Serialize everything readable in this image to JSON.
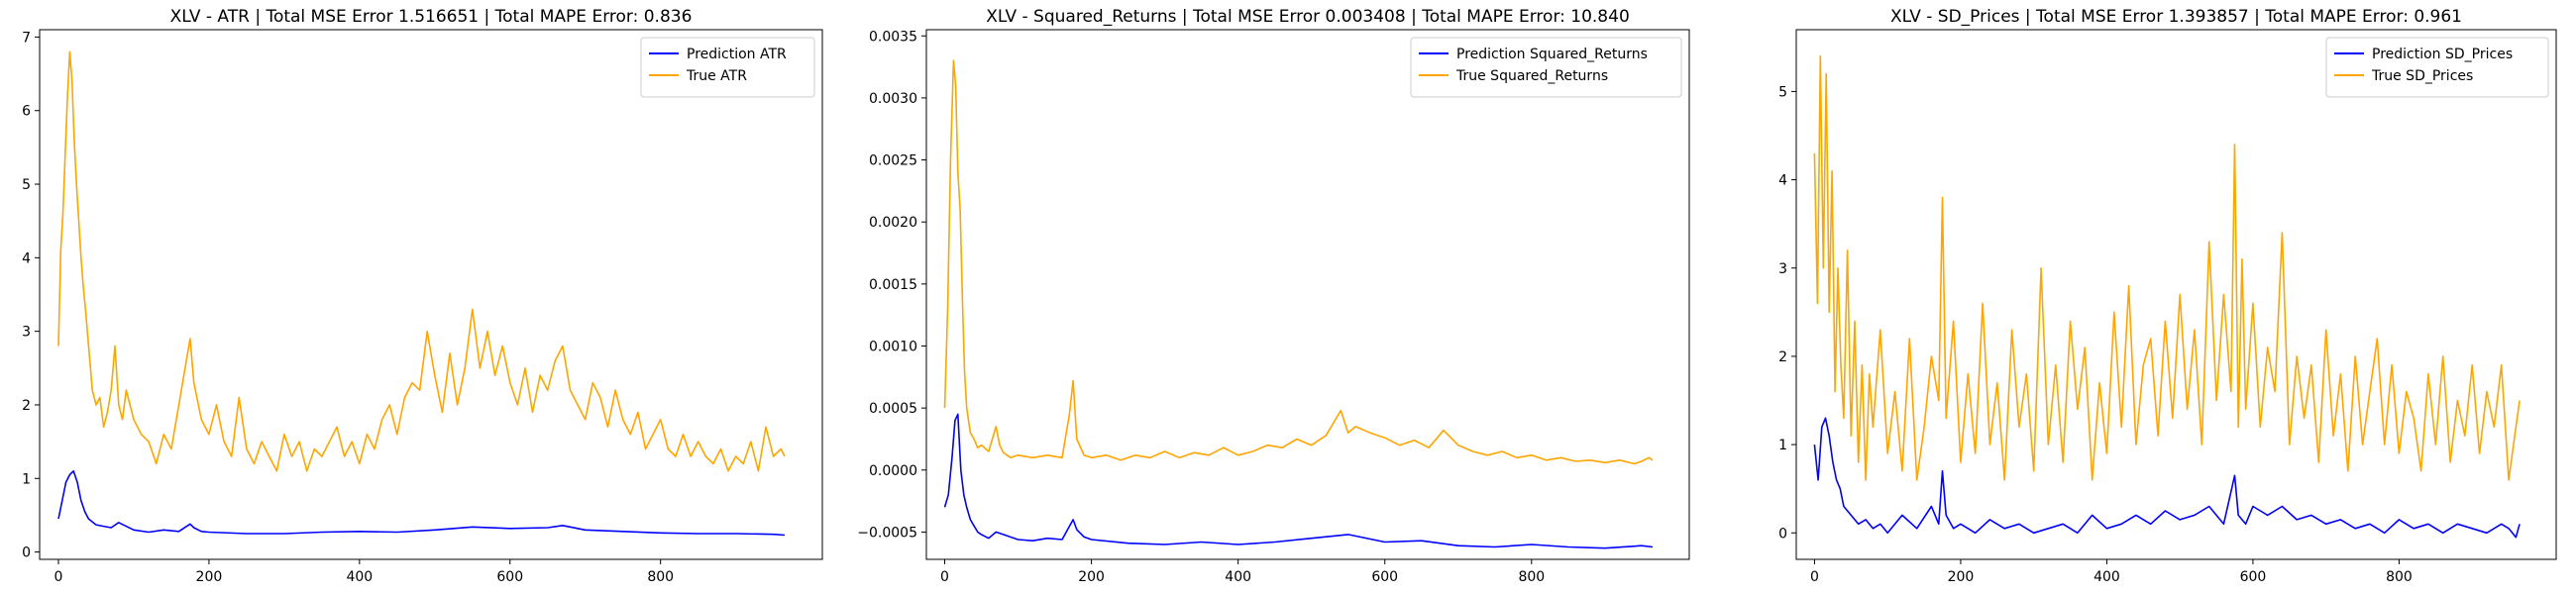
{
  "chart_data": [
    {
      "type": "line",
      "title": "XLV - ATR | Total MSE Error 1.516651 | Total MAPE Error: 0.836",
      "xlabel": "",
      "ylabel": "",
      "xlim": [
        -25,
        1015
      ],
      "ylim": [
        -0.1,
        7.1
      ],
      "xticks": [
        0,
        200,
        400,
        600,
        800
      ],
      "yticks": [
        0,
        1,
        2,
        3,
        4,
        5,
        6,
        7
      ],
      "ytick_labels": [
        "0",
        "1",
        "2",
        "3",
        "4",
        "5",
        "6",
        "7"
      ],
      "legend": "top-right",
      "grid": false,
      "series": [
        {
          "name": "Prediction ATR",
          "color": "#0000ff",
          "x": [
            0,
            5,
            10,
            15,
            20,
            25,
            30,
            35,
            40,
            50,
            60,
            70,
            80,
            100,
            120,
            140,
            160,
            175,
            180,
            190,
            200,
            250,
            300,
            350,
            400,
            450,
            500,
            550,
            600,
            650,
            670,
            700,
            750,
            800,
            850,
            900,
            950,
            965
          ],
          "y": [
            0.45,
            0.7,
            0.95,
            1.05,
            1.1,
            0.95,
            0.7,
            0.55,
            0.45,
            0.37,
            0.35,
            0.33,
            0.4,
            0.3,
            0.27,
            0.3,
            0.28,
            0.38,
            0.33,
            0.28,
            0.27,
            0.25,
            0.25,
            0.27,
            0.28,
            0.27,
            0.3,
            0.34,
            0.32,
            0.33,
            0.36,
            0.3,
            0.28,
            0.26,
            0.25,
            0.25,
            0.24,
            0.23
          ]
        },
        {
          "name": "True ATR",
          "color": "#ffa500",
          "x": [
            0,
            3,
            6,
            9,
            12,
            15,
            18,
            21,
            24,
            27,
            30,
            33,
            36,
            40,
            45,
            50,
            55,
            60,
            65,
            70,
            75,
            80,
            85,
            90,
            100,
            110,
            120,
            130,
            140,
            150,
            160,
            170,
            175,
            180,
            190,
            200,
            210,
            220,
            230,
            240,
            250,
            260,
            270,
            280,
            290,
            300,
            310,
            320,
            330,
            340,
            350,
            360,
            370,
            380,
            390,
            400,
            410,
            420,
            430,
            440,
            450,
            460,
            470,
            480,
            490,
            500,
            510,
            520,
            530,
            540,
            550,
            560,
            570,
            580,
            590,
            600,
            610,
            620,
            630,
            640,
            650,
            660,
            670,
            680,
            690,
            700,
            710,
            720,
            730,
            740,
            750,
            760,
            770,
            780,
            790,
            800,
            810,
            820,
            830,
            840,
            850,
            860,
            870,
            880,
            890,
            900,
            910,
            920,
            930,
            940,
            950,
            960,
            965
          ],
          "y": [
            2.8,
            4.1,
            4.6,
            5.4,
            6.2,
            6.8,
            6.4,
            5.6,
            5.0,
            4.5,
            4.0,
            3.6,
            3.3,
            2.8,
            2.2,
            2.0,
            2.1,
            1.7,
            1.9,
            2.2,
            2.8,
            2.0,
            1.8,
            2.2,
            1.8,
            1.6,
            1.5,
            1.2,
            1.6,
            1.4,
            2.0,
            2.6,
            2.9,
            2.3,
            1.8,
            1.6,
            2.0,
            1.5,
            1.3,
            2.1,
            1.4,
            1.2,
            1.5,
            1.3,
            1.1,
            1.6,
            1.3,
            1.5,
            1.1,
            1.4,
            1.3,
            1.5,
            1.7,
            1.3,
            1.5,
            1.2,
            1.6,
            1.4,
            1.8,
            2.0,
            1.6,
            2.1,
            2.3,
            2.2,
            3.0,
            2.4,
            1.9,
            2.7,
            2.0,
            2.5,
            3.3,
            2.5,
            3.0,
            2.4,
            2.8,
            2.3,
            2.0,
            2.5,
            1.9,
            2.4,
            2.2,
            2.6,
            2.8,
            2.2,
            2.0,
            1.8,
            2.3,
            2.1,
            1.7,
            2.2,
            1.8,
            1.6,
            1.9,
            1.4,
            1.6,
            1.8,
            1.4,
            1.3,
            1.6,
            1.3,
            1.5,
            1.3,
            1.2,
            1.4,
            1.1,
            1.3,
            1.2,
            1.5,
            1.1,
            1.7,
            1.3,
            1.4,
            1.3
          ]
        }
      ]
    },
    {
      "type": "line",
      "title": "XLV - Squared_Returns | Total MSE Error 0.003408 | Total MAPE Error: 10.840",
      "xlabel": "",
      "ylabel": "",
      "xlim": [
        -25,
        1015
      ],
      "ylim": [
        -0.00072,
        0.00355
      ],
      "xticks": [
        0,
        200,
        400,
        600,
        800
      ],
      "yticks": [
        -0.0005,
        0,
        0.0005,
        0.001,
        0.0015,
        0.002,
        0.0025,
        0.003,
        0.0035
      ],
      "ytick_labels": [
        "−0.0005",
        "0.0000",
        "0.0005",
        "0.0010",
        "0.0015",
        "0.0020",
        "0.0025",
        "0.0030",
        "0.0035"
      ],
      "legend": "top-right",
      "grid": false,
      "series": [
        {
          "name": "Prediction Squared_Returns",
          "color": "#0000ff",
          "x": [
            0,
            5,
            10,
            14,
            18,
            22,
            26,
            30,
            35,
            40,
            45,
            50,
            60,
            70,
            80,
            100,
            120,
            140,
            160,
            175,
            180,
            190,
            200,
            250,
            300,
            350,
            400,
            450,
            500,
            550,
            600,
            650,
            700,
            750,
            800,
            850,
            900,
            950,
            965
          ],
          "y": [
            -0.0003,
            -0.0002,
            0.0001,
            0.0004,
            0.00045,
            0.0,
            -0.0002,
            -0.0003,
            -0.0004,
            -0.00045,
            -0.0005,
            -0.00052,
            -0.00055,
            -0.0005,
            -0.00052,
            -0.00056,
            -0.00057,
            -0.00055,
            -0.00056,
            -0.0004,
            -0.00048,
            -0.00054,
            -0.00056,
            -0.00059,
            -0.0006,
            -0.00058,
            -0.0006,
            -0.00058,
            -0.00055,
            -0.00052,
            -0.00058,
            -0.00057,
            -0.00061,
            -0.00062,
            -0.0006,
            -0.00062,
            -0.00063,
            -0.00061,
            -0.00062
          ]
        },
        {
          "name": "True Squared_Returns",
          "color": "#ffa500",
          "x": [
            0,
            4,
            8,
            12,
            15,
            18,
            21,
            24,
            27,
            30,
            35,
            40,
            45,
            50,
            60,
            70,
            75,
            80,
            90,
            100,
            120,
            140,
            160,
            170,
            175,
            180,
            190,
            200,
            220,
            240,
            260,
            280,
            300,
            320,
            340,
            360,
            380,
            400,
            420,
            440,
            460,
            480,
            500,
            520,
            540,
            550,
            560,
            580,
            600,
            620,
            640,
            660,
            680,
            700,
            720,
            740,
            760,
            780,
            800,
            820,
            840,
            860,
            880,
            900,
            920,
            940,
            950,
            960,
            965
          ],
          "y": [
            0.0005,
            0.0013,
            0.0025,
            0.0033,
            0.0031,
            0.0024,
            0.0021,
            0.0014,
            0.0008,
            0.0005,
            0.0003,
            0.00025,
            0.00018,
            0.0002,
            0.00015,
            0.00035,
            0.0002,
            0.00014,
            0.0001,
            0.00012,
            0.0001,
            0.00012,
            0.0001,
            0.00045,
            0.00072,
            0.00025,
            0.00012,
            0.0001,
            0.00012,
            8e-05,
            0.00012,
            0.0001,
            0.00015,
            0.0001,
            0.00014,
            0.00012,
            0.00018,
            0.00012,
            0.00015,
            0.0002,
            0.00018,
            0.00025,
            0.0002,
            0.00028,
            0.00048,
            0.0003,
            0.00035,
            0.0003,
            0.00026,
            0.0002,
            0.00024,
            0.00018,
            0.00032,
            0.0002,
            0.00015,
            0.00012,
            0.00015,
            0.0001,
            0.00012,
            8e-05,
            0.0001,
            7e-05,
            8e-05,
            6e-05,
            8e-05,
            5e-05,
            7e-05,
            0.0001,
            8e-05
          ]
        }
      ]
    },
    {
      "type": "line",
      "title": "XLV - SD_Prices | Total MSE Error 1.393857 | Total MAPE Error: 0.961",
      "xlabel": "",
      "ylabel": "",
      "xlim": [
        -25,
        1015
      ],
      "ylim": [
        -0.3,
        5.7
      ],
      "xticks": [
        0,
        200,
        400,
        600,
        800
      ],
      "yticks": [
        0,
        1,
        2,
        3,
        4,
        5
      ],
      "ytick_labels": [
        "0",
        "1",
        "2",
        "3",
        "4",
        "5"
      ],
      "legend": "top-right",
      "grid": false,
      "series": [
        {
          "name": "Prediction SD_Prices",
          "color": "#0000ff",
          "x": [
            0,
            5,
            10,
            15,
            20,
            25,
            30,
            35,
            40,
            50,
            60,
            70,
            80,
            90,
            100,
            120,
            140,
            160,
            170,
            175,
            180,
            190,
            200,
            220,
            240,
            260,
            280,
            300,
            320,
            340,
            360,
            380,
            400,
            420,
            440,
            460,
            480,
            500,
            520,
            540,
            560,
            575,
            580,
            590,
            600,
            620,
            640,
            660,
            680,
            700,
            720,
            740,
            760,
            780,
            800,
            820,
            840,
            860,
            880,
            900,
            920,
            940,
            950,
            960,
            965
          ],
          "y": [
            1.0,
            0.6,
            1.2,
            1.3,
            1.1,
            0.8,
            0.6,
            0.5,
            0.3,
            0.2,
            0.1,
            0.15,
            0.05,
            0.1,
            0.0,
            0.2,
            0.05,
            0.3,
            0.1,
            0.7,
            0.2,
            0.05,
            0.1,
            0.0,
            0.15,
            0.05,
            0.1,
            0.0,
            0.05,
            0.1,
            0.0,
            0.2,
            0.05,
            0.1,
            0.2,
            0.1,
            0.25,
            0.15,
            0.2,
            0.3,
            0.1,
            0.65,
            0.2,
            0.1,
            0.3,
            0.2,
            0.3,
            0.15,
            0.2,
            0.1,
            0.15,
            0.05,
            0.1,
            0.0,
            0.15,
            0.05,
            0.1,
            0.0,
            0.1,
            0.05,
            0.0,
            0.1,
            0.05,
            -0.05,
            0.1
          ]
        },
        {
          "name": "True SD_Prices",
          "color": "#ffa500",
          "x": [
            0,
            4,
            8,
            12,
            16,
            20,
            24,
            28,
            32,
            36,
            40,
            45,
            50,
            55,
            60,
            65,
            70,
            75,
            80,
            90,
            100,
            110,
            120,
            130,
            140,
            150,
            160,
            170,
            175,
            180,
            190,
            200,
            210,
            220,
            230,
            240,
            250,
            260,
            270,
            280,
            290,
            300,
            310,
            320,
            330,
            340,
            350,
            360,
            370,
            380,
            390,
            400,
            410,
            420,
            430,
            440,
            450,
            460,
            470,
            480,
            490,
            500,
            510,
            520,
            530,
            540,
            550,
            560,
            570,
            575,
            580,
            585,
            590,
            600,
            610,
            620,
            630,
            640,
            650,
            660,
            670,
            680,
            690,
            700,
            710,
            720,
            730,
            740,
            750,
            760,
            770,
            780,
            790,
            800,
            810,
            820,
            830,
            840,
            850,
            860,
            870,
            880,
            890,
            900,
            910,
            920,
            930,
            940,
            950,
            960,
            965
          ],
          "y": [
            4.3,
            2.6,
            5.4,
            3.0,
            5.2,
            2.5,
            4.1,
            1.6,
            3.0,
            1.9,
            1.3,
            3.2,
            1.1,
            2.4,
            0.8,
            1.9,
            0.6,
            1.8,
            1.2,
            2.3,
            0.9,
            1.6,
            0.7,
            2.2,
            0.6,
            1.2,
            2.0,
            1.5,
            3.8,
            1.3,
            2.4,
            0.8,
            1.8,
            0.9,
            2.6,
            1.0,
            1.7,
            0.6,
            2.3,
            1.2,
            1.8,
            0.7,
            3.0,
            1.0,
            1.9,
            0.8,
            2.4,
            1.4,
            2.1,
            0.6,
            1.7,
            0.9,
            2.5,
            1.2,
            2.8,
            1.0,
            1.9,
            2.2,
            1.1,
            2.4,
            1.3,
            2.7,
            1.4,
            2.3,
            1.0,
            3.3,
            1.5,
            2.7,
            1.6,
            4.4,
            1.2,
            3.1,
            1.4,
            2.6,
            1.2,
            2.1,
            1.6,
            3.4,
            1.0,
            2.0,
            1.3,
            1.9,
            0.8,
            2.3,
            1.1,
            1.8,
            0.7,
            2.0,
            1.0,
            1.6,
            2.2,
            1.0,
            1.9,
            0.9,
            1.6,
            1.3,
            0.7,
            1.8,
            1.0,
            2.0,
            0.8,
            1.5,
            1.1,
            1.9,
            0.9,
            1.6,
            1.2,
            1.9,
            0.6,
            1.2,
            1.5
          ]
        }
      ]
    }
  ]
}
